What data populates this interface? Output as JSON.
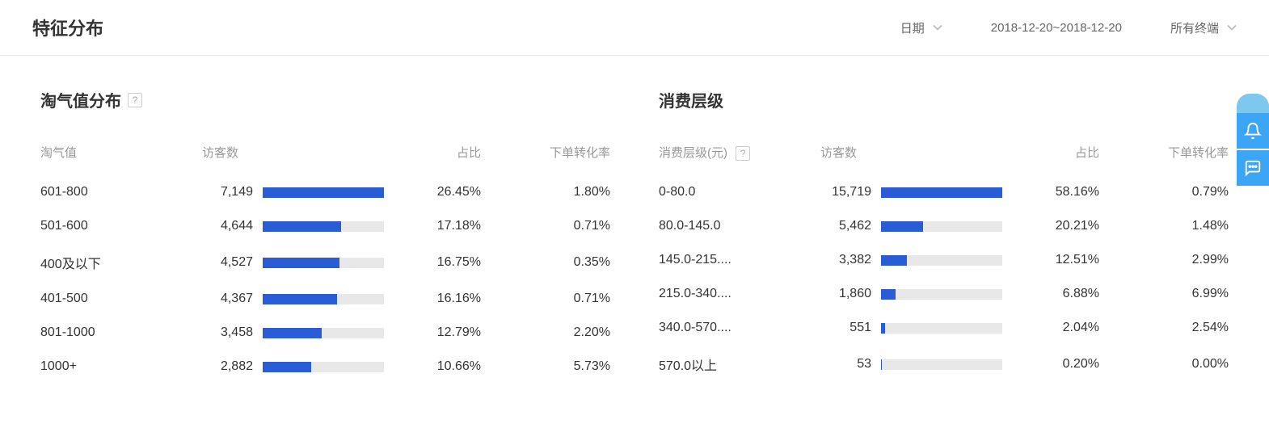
{
  "header": {
    "title": "特征分布",
    "date_label": "日期",
    "date_range": "2018-12-20~2018-12-20",
    "terminal_label": "所有终端"
  },
  "colors": {
    "bar_fill": "#2a5cd6",
    "bar_track": "#e8e8e8",
    "widget_bg": "#3da5f5",
    "border": "#e8e8e8",
    "text_muted": "#999999",
    "text": "#333333"
  },
  "left_section": {
    "title": "淘气值分布",
    "has_help": true,
    "columns": {
      "label": "淘气值",
      "visitors": "访客数",
      "pct": "占比",
      "conv": "下单转化率"
    },
    "max_value": 7149,
    "rows": [
      {
        "label": "601-800",
        "visitors": "7,149",
        "visitors_num": 7149,
        "pct": "26.45%",
        "conv": "1.80%"
      },
      {
        "label": "501-600",
        "visitors": "4,644",
        "visitors_num": 4644,
        "pct": "17.18%",
        "conv": "0.71%"
      },
      {
        "label": "400及以下",
        "visitors": "4,527",
        "visitors_num": 4527,
        "pct": "16.75%",
        "conv": "0.35%"
      },
      {
        "label": "401-500",
        "visitors": "4,367",
        "visitors_num": 4367,
        "pct": "16.16%",
        "conv": "0.71%"
      },
      {
        "label": "801-1000",
        "visitors": "3,458",
        "visitors_num": 3458,
        "pct": "12.79%",
        "conv": "2.20%"
      },
      {
        "label": "1000+",
        "visitors": "2,882",
        "visitors_num": 2882,
        "pct": "10.66%",
        "conv": "5.73%"
      }
    ]
  },
  "right_section": {
    "title": "消费层级",
    "has_help": false,
    "columns": {
      "label": "消费层级(元)",
      "label_has_help": true,
      "visitors": "访客数",
      "pct": "占比",
      "conv": "下单转化率"
    },
    "max_value": 15719,
    "rows": [
      {
        "label": "0-80.0",
        "visitors": "15,719",
        "visitors_num": 15719,
        "pct": "58.16%",
        "conv": "0.79%"
      },
      {
        "label": "80.0-145.0",
        "visitors": "5,462",
        "visitors_num": 5462,
        "pct": "20.21%",
        "conv": "1.48%"
      },
      {
        "label": "145.0-215....",
        "visitors": "3,382",
        "visitors_num": 3382,
        "pct": "12.51%",
        "conv": "2.99%"
      },
      {
        "label": "215.0-340....",
        "visitors": "1,860",
        "visitors_num": 1860,
        "pct": "6.88%",
        "conv": "6.99%"
      },
      {
        "label": "340.0-570....",
        "visitors": "551",
        "visitors_num": 551,
        "pct": "2.04%",
        "conv": "2.54%"
      },
      {
        "label": "570.0以上",
        "visitors": "53",
        "visitors_num": 53,
        "pct": "0.20%",
        "conv": "0.00%"
      }
    ]
  }
}
